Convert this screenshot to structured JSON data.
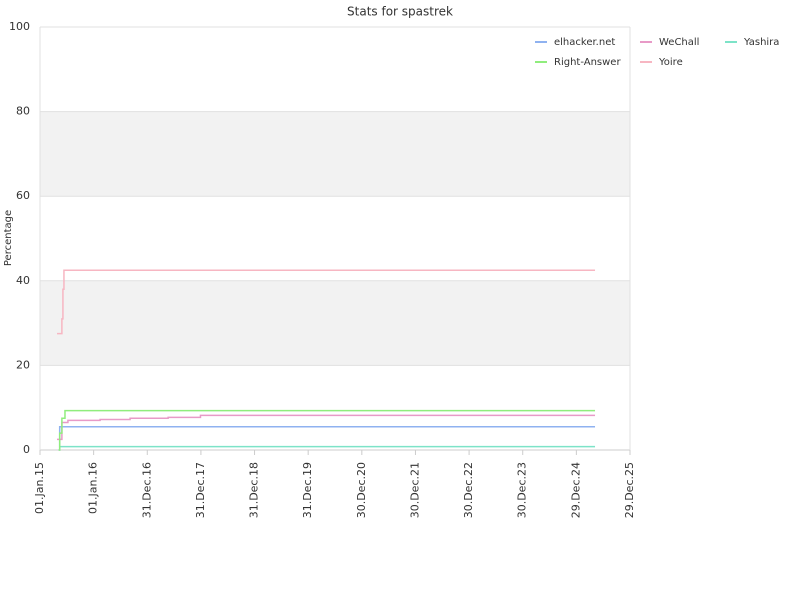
{
  "chart_data": {
    "type": "line",
    "title": "Stats for spastrek",
    "y_label": "Percentage",
    "xlim": [
      "2015-01-01",
      "2025-12-29"
    ],
    "xticks": [
      {
        "value": "2015-01-01",
        "label": "01.Jan.15"
      },
      {
        "value": "2016-01-01",
        "label": "01.Jan.16"
      },
      {
        "value": "2016-12-31",
        "label": "31.Dec.16"
      },
      {
        "value": "2017-12-31",
        "label": "31.Dec.17"
      },
      {
        "value": "2018-12-31",
        "label": "31.Dec.18"
      },
      {
        "value": "2019-12-31",
        "label": "31.Dec.19"
      },
      {
        "value": "2020-12-30",
        "label": "30.Dec.20"
      },
      {
        "value": "2021-12-30",
        "label": "30.Dec.21"
      },
      {
        "value": "2022-12-30",
        "label": "30.Dec.22"
      },
      {
        "value": "2023-12-30",
        "label": "30.Dec.23"
      },
      {
        "value": "2024-12-29",
        "label": "29.Dec.24"
      },
      {
        "value": "2025-12-29",
        "label": "29.Dec.25"
      }
    ],
    "ylim": [
      0,
      100
    ],
    "yticks": [
      0,
      20,
      40,
      60,
      80,
      100
    ],
    "plot_bands": [
      [
        20,
        40
      ],
      [
        60,
        80
      ]
    ],
    "band_color": "#f2f2f2",
    "grid": true,
    "step": true,
    "legend": "top-right",
    "series": [
      {
        "name": "elhacker.net",
        "color": "#8fb2f0",
        "x": [
          "2015-05-08",
          "2015-05-15",
          "2025-05-05"
        ],
        "values": [
          0,
          5.5,
          5.5
        ]
      },
      {
        "name": "WeChall",
        "color": "#e89ac7",
        "x": [
          "2015-04-27",
          "2015-05-30",
          "2015-07-10",
          "2016-02-14",
          "2016-09-05",
          "2017-05-22",
          "2017-12-28",
          "2025-05-05"
        ],
        "values": [
          2.5,
          6.5,
          7,
          7.2,
          7.5,
          7.7,
          8.2,
          8.2
        ]
      },
      {
        "name": "Yashira",
        "color": "#7de3c8",
        "x": [
          "2015-05-15",
          "2025-05-05"
        ],
        "values": [
          0.8,
          0.8
        ]
      },
      {
        "name": "Right-Answer",
        "color": "#90ed7d",
        "x": [
          "2015-05-08",
          "2015-05-15",
          "2015-05-30",
          "2015-06-20",
          "2025-05-05"
        ],
        "values": [
          0,
          4,
          7.5,
          9.3,
          9.3
        ]
      },
      {
        "name": "Yoire",
        "color": "#f7b6c2",
        "x": [
          "2015-04-27",
          "2015-05-30",
          "2015-06-06",
          "2015-06-13",
          "2025-05-05"
        ],
        "values": [
          27.5,
          31,
          38,
          42.5,
          42.5
        ]
      }
    ]
  }
}
